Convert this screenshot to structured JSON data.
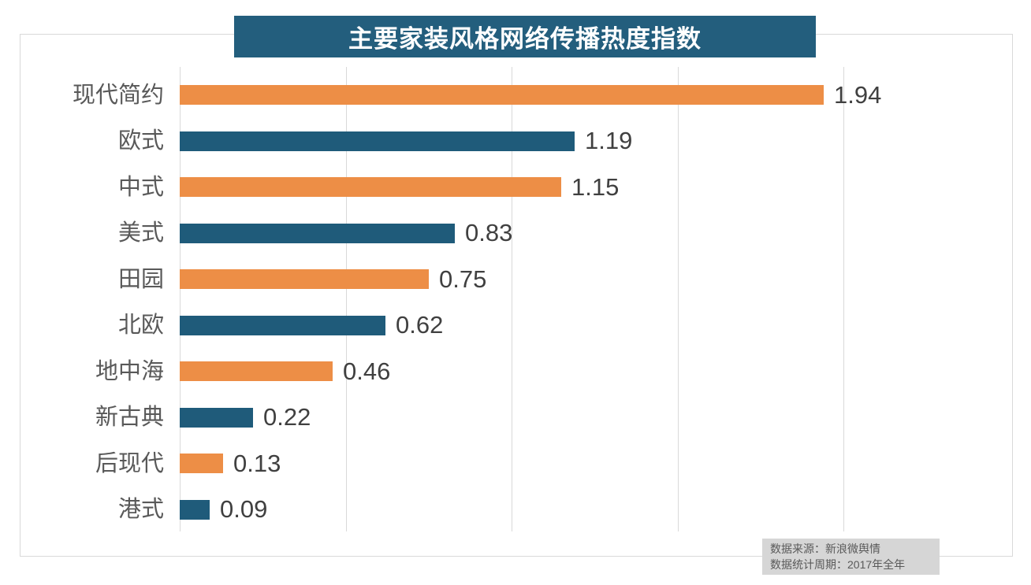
{
  "chart_data": {
    "type": "bar",
    "orientation": "horizontal",
    "title": "主要家装风格网络传播热度指数",
    "categories": [
      "现代简约",
      "欧式",
      "中式",
      "美式",
      "田园",
      "北欧",
      "地中海",
      "新古典",
      "后现代",
      "港式"
    ],
    "values": [
      1.94,
      1.19,
      1.15,
      0.83,
      0.75,
      0.62,
      0.46,
      0.22,
      0.13,
      0.09
    ],
    "value_label_decimals": 2,
    "xlim": [
      0,
      2.0
    ],
    "gridline_step": 0.5,
    "grid": true,
    "legend": "none",
    "bar_colors_alternating": [
      "#ED8E46",
      "#1F5B7A"
    ],
    "colors": {
      "title_background": "#235E7D",
      "title_text": "#ffffff",
      "category_label": "#595959",
      "value_label": "#404040",
      "gridline": "#d9d9d9",
      "frame_border": "#d9d9d9",
      "source_box_background": "#d6d6d6",
      "source_text": "#595959"
    }
  },
  "source": {
    "line1": "数据来源：新浪微舆情",
    "line2": "数据统计周期：2017年全年"
  }
}
